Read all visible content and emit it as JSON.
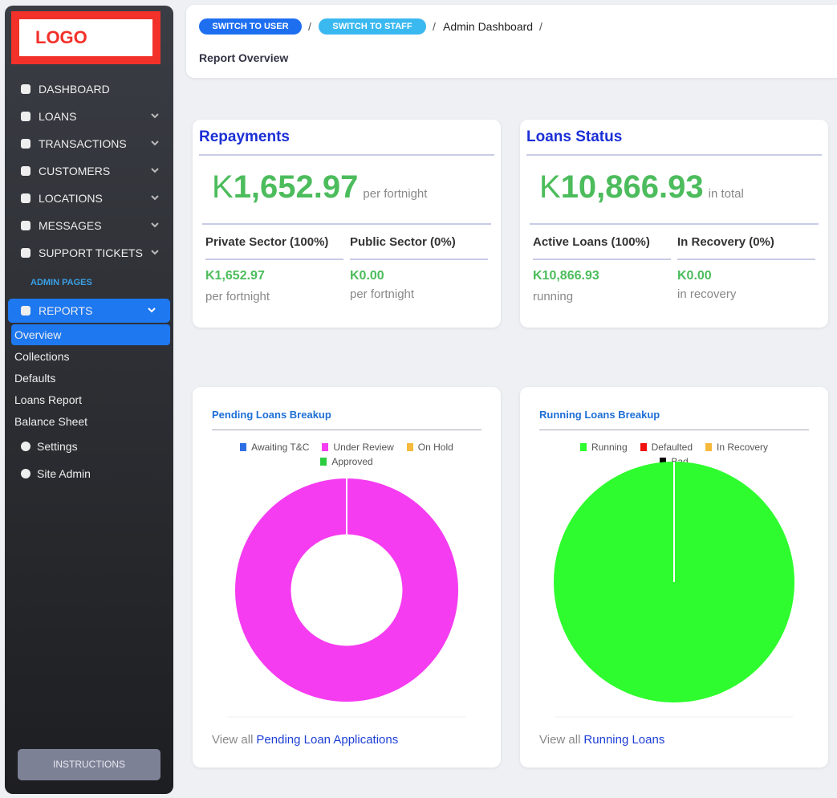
{
  "sidebar": {
    "logo": "LOGO",
    "menu": [
      "DASHBOARD",
      "LOANS",
      "TRANSACTIONS",
      "CUSTOMERS",
      "LOCATIONS",
      "MESSAGES",
      "SUPPORT TICKETS"
    ],
    "section": "ADMIN PAGES",
    "reports": "REPORTS",
    "submenu": [
      "Overview",
      "Collections",
      "Defaults",
      "Loans Report",
      "Balance Sheet"
    ],
    "extra": [
      "Settings",
      "Site Admin"
    ],
    "instructions": "INSTRUCTIONS"
  },
  "header": {
    "buttons": [
      "SWITCH TO USER",
      "SWITCH TO STAFF"
    ],
    "separator": "/",
    "breadcrumb": "Admin Dashboard",
    "page_title": "Report Overview"
  },
  "cards": [
    {
      "title": "Repayments",
      "currency": "K",
      "amount": "1,652.97",
      "unit": "per fortnight",
      "columns": [
        {
          "label": "Private Sector (100%)",
          "amount": "K1,652.97",
          "note": "per fortnight"
        },
        {
          "label": "Public Sector (0%)",
          "amount": "K0.00",
          "note": "per fortnight"
        }
      ]
    },
    {
      "title": "Loans Status",
      "currency": "K",
      "amount": "10,866.93",
      "unit": "in total",
      "columns": [
        {
          "label": "Active Loans (100%)",
          "amount": "K10,866.93",
          "note": "running"
        },
        {
          "label": "In Recovery (0%)",
          "amount": "K0.00",
          "note": "in recovery"
        }
      ]
    }
  ],
  "chart_footers": [
    {
      "text": "View all",
      "link": "Pending Loan Applications"
    },
    {
      "text": "View all",
      "link": "Running Loans"
    }
  ],
  "chart_data": [
    {
      "type": "doughnut",
      "title": "Pending Loans Breakup",
      "categories": [
        "Awaiting T&C",
        "Under Review",
        "On Hold",
        "Approved"
      ],
      "values": [
        0,
        100,
        0,
        0
      ],
      "colors": [
        "#2f6fe4",
        "#f53cf0",
        "#f6b93b",
        "#2ecc40"
      ]
    },
    {
      "type": "pie",
      "title": "Running Loans Breakup",
      "categories": [
        "Running",
        "Defaulted",
        "In Recovery",
        "Bad"
      ],
      "values": [
        100,
        0,
        0,
        0
      ],
      "colors": [
        "#2efc2e",
        "#f01010",
        "#f6b93b",
        "#000000"
      ]
    }
  ]
}
